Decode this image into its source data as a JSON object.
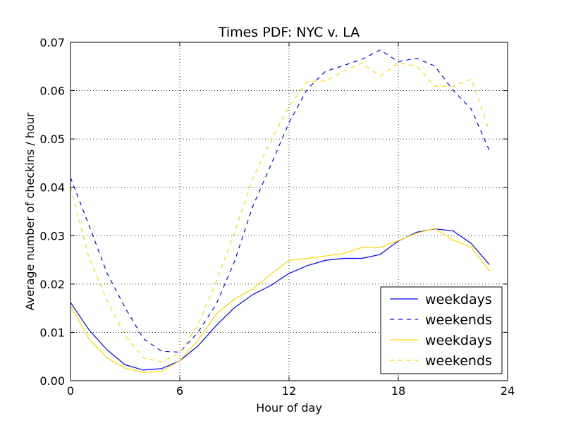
{
  "chart_data": {
    "type": "line",
    "title": "Times PDF: NYC v. LA",
    "xlabel": "Hour of day",
    "ylabel": "Average number of checkins / hour",
    "xlim": [
      0,
      24
    ],
    "ylim": [
      0,
      0.07
    ],
    "xticks": [
      0,
      6,
      12,
      18,
      24
    ],
    "xtick_labels": [
      "0",
      "6",
      "12",
      "18",
      "24"
    ],
    "yticks": [
      0,
      0.01,
      0.02,
      0.03,
      0.04,
      0.05,
      0.06,
      0.07
    ],
    "ytick_labels": [
      "0.00",
      "0.01",
      "0.02",
      "0.03",
      "0.04",
      "0.05",
      "0.06",
      "0.07"
    ],
    "grid": true,
    "legend_position": "lower-right",
    "x": [
      0,
      1,
      2,
      3,
      4,
      5,
      6,
      7,
      8,
      9,
      10,
      11,
      12,
      13,
      14,
      15,
      16,
      17,
      18,
      19,
      20,
      21,
      22,
      23
    ],
    "series": [
      {
        "name": "weekdays",
        "color": "#0000ff",
        "style": "solid",
        "values": [
          0.0162,
          0.0106,
          0.0064,
          0.0033,
          0.0022,
          0.0025,
          0.0041,
          0.0072,
          0.0114,
          0.0151,
          0.0178,
          0.0197,
          0.0222,
          0.0238,
          0.0249,
          0.0253,
          0.0253,
          0.0261,
          0.0289,
          0.0307,
          0.0314,
          0.031,
          0.0284,
          0.024
        ]
      },
      {
        "name": "weekends",
        "color": "#0000ff",
        "style": "dashed",
        "values": [
          0.042,
          0.0323,
          0.0223,
          0.0151,
          0.0087,
          0.0061,
          0.0059,
          0.01,
          0.0158,
          0.0246,
          0.036,
          0.0446,
          0.0534,
          0.0603,
          0.064,
          0.0652,
          0.0665,
          0.0684,
          0.066,
          0.0667,
          0.0651,
          0.0601,
          0.0562,
          0.0476
        ]
      },
      {
        "name": "weekdays",
        "color": "#ffd700",
        "style": "solid",
        "values": [
          0.0155,
          0.0087,
          0.0047,
          0.0026,
          0.0017,
          0.002,
          0.0041,
          0.0084,
          0.0138,
          0.0169,
          0.019,
          0.022,
          0.0249,
          0.0253,
          0.0258,
          0.0263,
          0.0276,
          0.0275,
          0.029,
          0.0305,
          0.0315,
          0.0291,
          0.0276,
          0.0227
        ]
      },
      {
        "name": "weekends",
        "color": "#ffd700",
        "style": "dashed",
        "values": [
          0.0401,
          0.0256,
          0.0166,
          0.0094,
          0.0047,
          0.0039,
          0.0058,
          0.0115,
          0.0205,
          0.0306,
          0.0418,
          0.0496,
          0.0567,
          0.0619,
          0.062,
          0.064,
          0.0657,
          0.063,
          0.0657,
          0.0651,
          0.0609,
          0.0609,
          0.0624,
          0.0517
        ]
      }
    ]
  }
}
